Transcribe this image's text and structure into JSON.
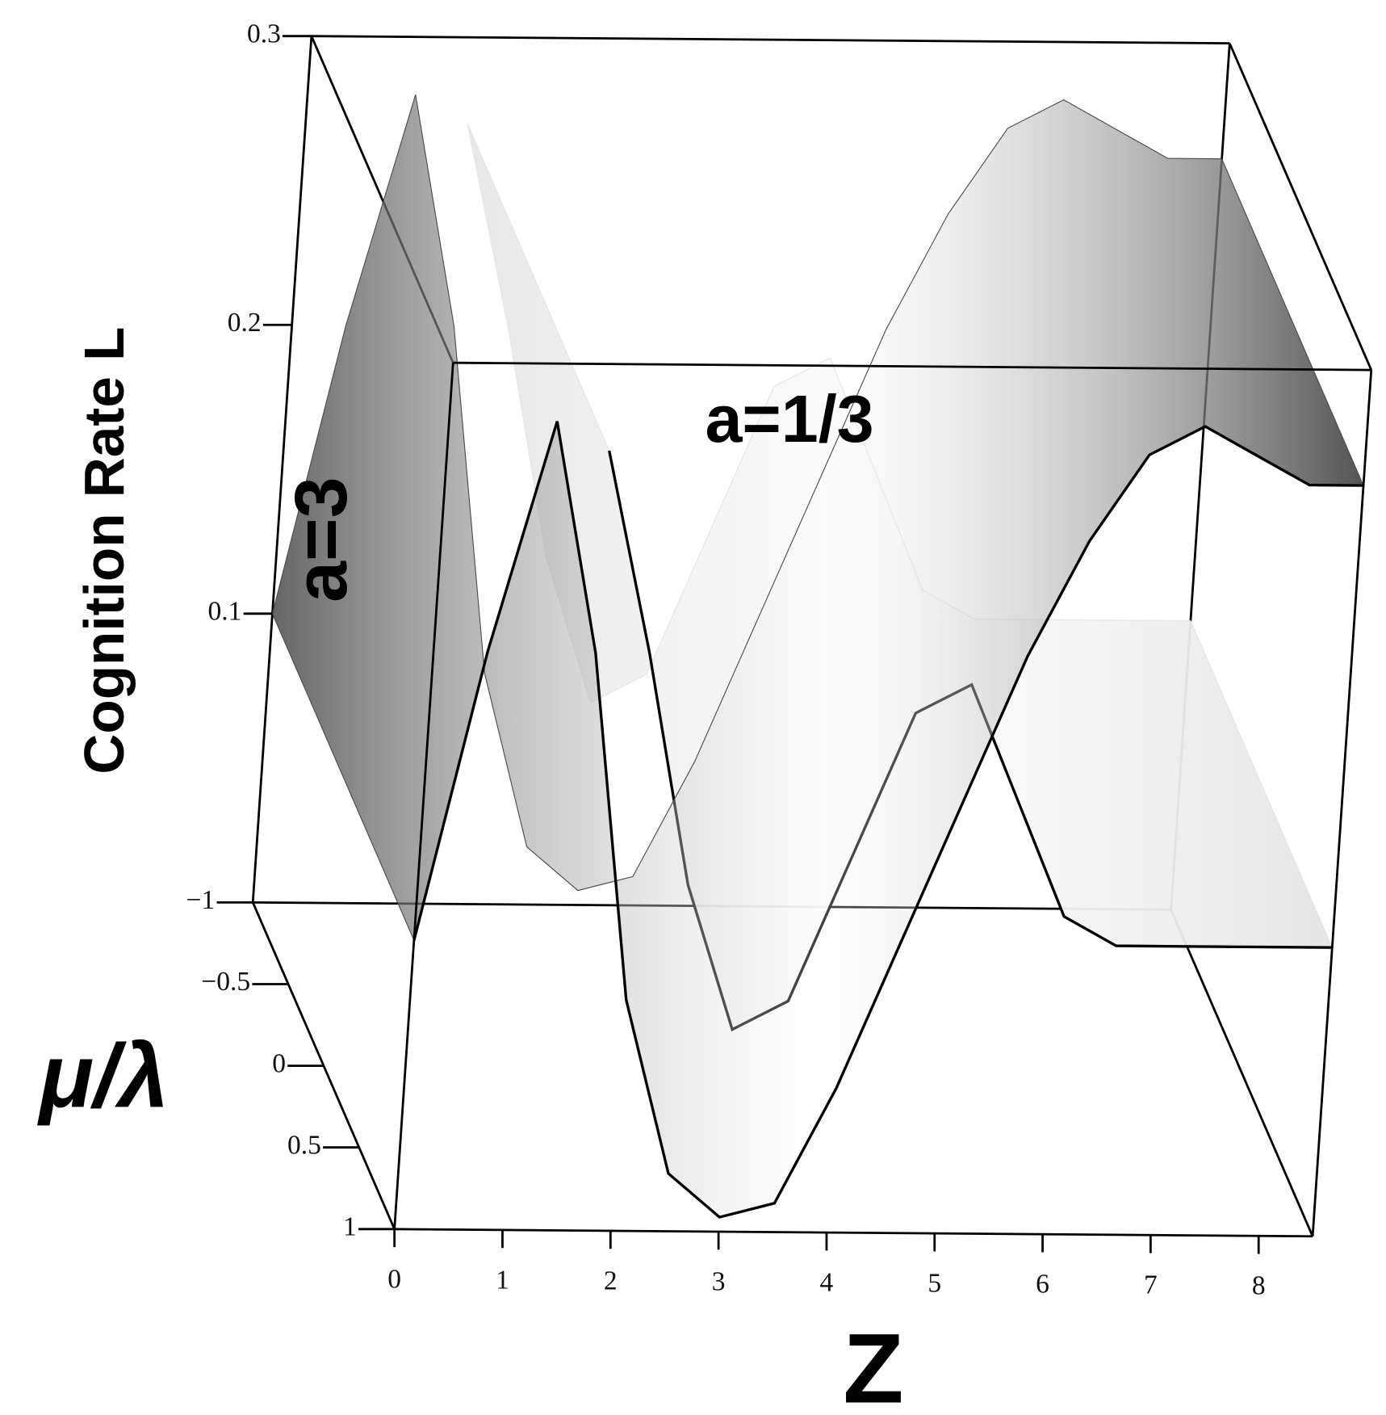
{
  "chart_data": {
    "type": "surface",
    "x_label": "Z",
    "y_label": "μ/λ",
    "z_label": "Cognition Rate L",
    "x": [
      0,
      0.5,
      1,
      1.5,
      2,
      2.5,
      3,
      3.5,
      4,
      4.5,
      5,
      5.5,
      6,
      6.5,
      7,
      7.5,
      8,
      8.5
    ],
    "series": [
      {
        "name": "a=1/3",
        "color": "#e4e4e4",
        "values": [
          null,
          null,
          null,
          0.27,
          0.2,
          0.12,
          0.07,
          0.08,
          0.13,
          0.18,
          0.19,
          0.15,
          0.11,
          0.1,
          0.1,
          0.1,
          0.1,
          0.1
        ]
      },
      {
        "name": "a=3",
        "color": "#4a4a4a",
        "values": [
          0.1,
          0.2,
          0.28,
          0.2,
          0.08,
          0.02,
          0.005,
          0.01,
          0.05,
          0.1,
          0.15,
          0.2,
          0.24,
          0.27,
          0.28,
          0.27,
          0.26,
          0.26
        ]
      }
    ],
    "xlim": [
      0,
      8.5
    ],
    "xticks": [
      0,
      1,
      2,
      3,
      4,
      5,
      6,
      7,
      8
    ],
    "ylim": [
      -1,
      1
    ],
    "yticks": [
      {
        "value": -1,
        "label": "−1"
      },
      {
        "value": -0.5,
        "label": "−0.5"
      },
      0,
      0.5,
      1
    ],
    "zlim": [
      0,
      0.3
    ],
    "zticks": [
      0.1,
      0.2,
      0.3
    ]
  }
}
